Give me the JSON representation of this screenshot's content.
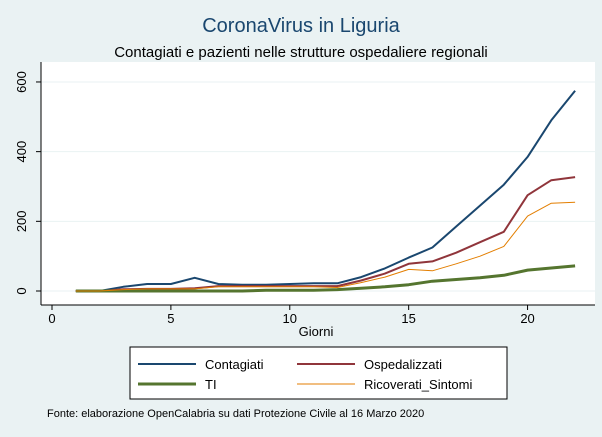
{
  "chart_data": {
    "type": "line",
    "title": "CoronaVirus in Liguria",
    "subtitle": "Contagiati e pazienti nelle strutture ospedaliere regionali",
    "xlabel": "Giorni",
    "ylabel": "",
    "xlim": [
      0,
      22.5
    ],
    "ylim": [
      0,
      620
    ],
    "xticks": [
      0,
      5,
      10,
      15,
      20
    ],
    "yticks": [
      0,
      200,
      400,
      600
    ],
    "grid": "horizontal",
    "legend_position": "bottom",
    "x": [
      1,
      2,
      3,
      4,
      5,
      6,
      7,
      8,
      9,
      10,
      11,
      12,
      13,
      14,
      15,
      16,
      17,
      18,
      19,
      20,
      21,
      22
    ],
    "series": [
      {
        "name": "Contagiati",
        "color": "#1a476f",
        "width": 2,
        "values": [
          0,
          0,
          12,
          20,
          20,
          38,
          20,
          18,
          18,
          20,
          22,
          22,
          40,
          65,
          96,
          125,
          185,
          245,
          305,
          385,
          490,
          575
        ]
      },
      {
        "name": "Ospedalizzati",
        "color": "#90353b",
        "width": 2,
        "values": [
          0,
          0,
          5,
          6,
          6,
          8,
          14,
          14,
          14,
          14,
          14,
          14,
          30,
          50,
          78,
          85,
          110,
          140,
          170,
          275,
          318,
          327
        ]
      },
      {
        "name": "TI",
        "color": "#55752f",
        "width": 3,
        "values": [
          0,
          0,
          0,
          0,
          0,
          0,
          0,
          0,
          2,
          2,
          2,
          4,
          8,
          12,
          18,
          28,
          33,
          38,
          45,
          60,
          66,
          72
        ]
      },
      {
        "name": "Ricoverati_Sintomi",
        "color": "#e37e00",
        "width": 1,
        "values": [
          0,
          0,
          4,
          6,
          6,
          6,
          12,
          12,
          12,
          12,
          12,
          10,
          24,
          40,
          62,
          58,
          78,
          100,
          128,
          215,
          252,
          255
        ]
      }
    ]
  },
  "footnote": "Fonte: elaborazione OpenCalabria su dati Protezione Civile al 16 Marzo 2020"
}
